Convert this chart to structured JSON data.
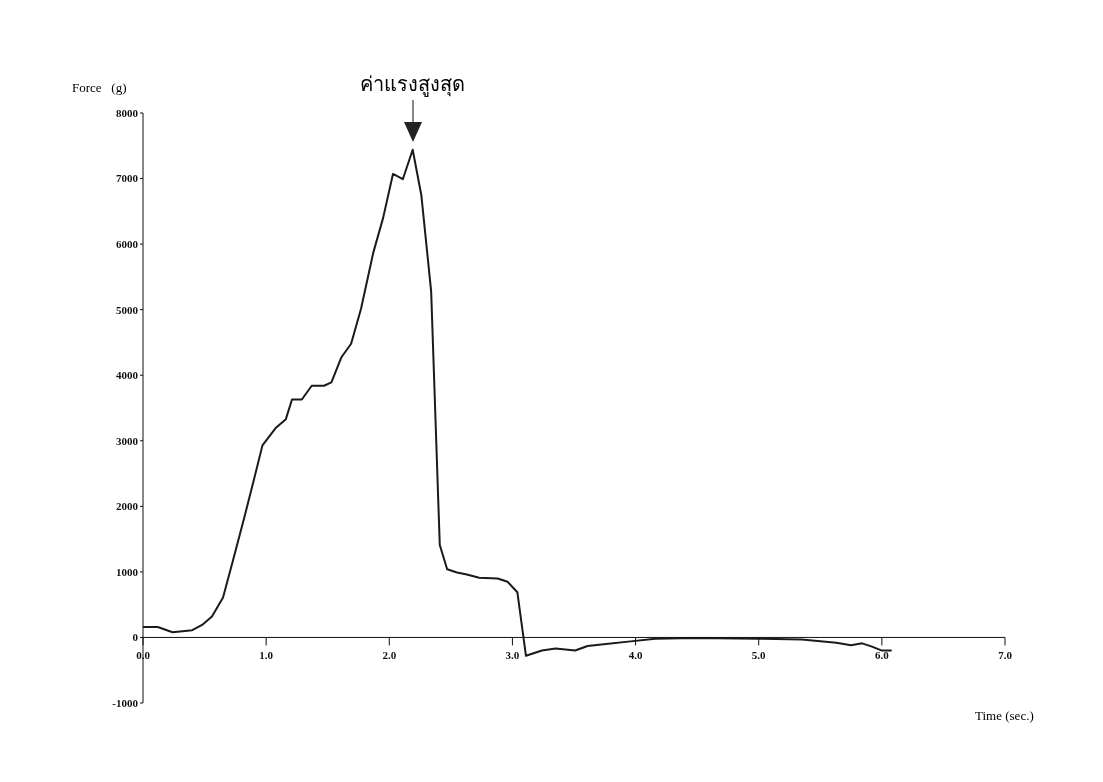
{
  "chart_data": {
    "type": "line",
    "xlabel": "Time (sec.)",
    "ylabel": "Force   (g)",
    "annotations": [
      {
        "text": "ค่าแรงสูงสุด",
        "x": 2.19,
        "y": 7440
      }
    ],
    "series": [
      {
        "color": "#1a1a1a",
        "x": [
          0,
          0.12,
          0.24,
          0.4,
          0.48,
          0.56,
          0.65,
          0.73,
          0.82,
          0.9,
          0.97,
          1.08,
          1.16,
          1.21,
          1.29,
          1.37,
          1.47,
          1.53,
          1.61,
          1.69,
          1.77,
          1.87,
          1.95,
          2.03,
          2.11,
          2.19,
          2.26,
          2.34,
          2.41,
          2.47,
          2.55,
          2.63,
          2.73,
          2.88,
          2.96,
          3.04,
          3.11,
          3.24,
          3.35,
          3.51,
          3.61,
          3.76,
          3.96,
          4.16,
          4.48,
          5.0,
          5.35,
          5.63,
          5.75,
          5.84,
          5.92,
          6.0,
          6.08
        ],
        "values": [
          160,
          160,
          80,
          110,
          190,
          320,
          610,
          1170,
          1810,
          2400,
          2930,
          3200,
          3330,
          3630,
          3630,
          3840,
          3840,
          3890,
          4270,
          4480,
          5010,
          5870,
          6400,
          7070,
          6990,
          7440,
          6750,
          5280,
          1410,
          1040,
          990,
          960,
          910,
          900,
          850,
          690,
          -280,
          -200,
          -170,
          -200,
          -130,
          -100,
          -60,
          -20,
          -10,
          -20,
          -30,
          -80,
          -120,
          -90,
          -140,
          -200,
          -200
        ]
      }
    ],
    "xlim": [
      0,
      7
    ],
    "xticks": [
      {
        "value": 0,
        "label": "0.0"
      },
      {
        "value": 1,
        "label": "1.0"
      },
      {
        "value": 2,
        "label": "2.0"
      },
      {
        "value": 3,
        "label": "3.0"
      },
      {
        "value": 4,
        "label": "4.0"
      },
      {
        "value": 5,
        "label": "5.0"
      },
      {
        "value": 6,
        "label": "6.0"
      },
      {
        "value": 7,
        "label": "7.0"
      }
    ],
    "ylim": [
      -1000,
      8000
    ],
    "yticks": [
      -1000,
      0,
      1000,
      2000,
      3000,
      4000,
      5000,
      6000,
      7000,
      8000
    ],
    "grid": false,
    "legend": false,
    "marker": "none",
    "line_style": "solid"
  }
}
